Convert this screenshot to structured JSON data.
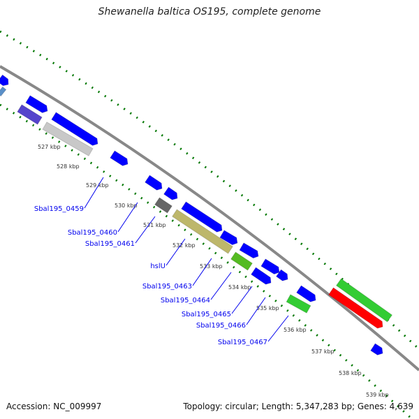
{
  "title": "Shewanella baltica OS195, complete genome",
  "footer": {
    "accession": "Accession: NC_009997",
    "topology": "Topology: circular; Length: 5,347,283 bp; Genes: 4,639"
  },
  "ticks": [
    "527 kbp",
    "528 kbp",
    "529 kbp",
    "530 kbp",
    "531 kbp",
    "532 kbp",
    "533 kbp",
    "534 kbp",
    "535 kbp",
    "536 kbp",
    "537 kbp",
    "538 kbp",
    "539 kbp"
  ],
  "gene_labels": [
    "Sbal195_0459",
    "Sbal195_0460",
    "Sbal195_0461",
    "hslU",
    "Sbal195_0463",
    "Sbal195_0464",
    "Sbal195_0465",
    "Sbal195_0466",
    "Sbal195_0467"
  ],
  "colors": {
    "blue": "#0000ff",
    "gray": "#c8c8c8",
    "darkgray": "#666666",
    "khaki": "#bdb76b",
    "green": "#33cc33",
    "red": "#ff0000",
    "tick": "#007700",
    "backbone": "#888888"
  }
}
